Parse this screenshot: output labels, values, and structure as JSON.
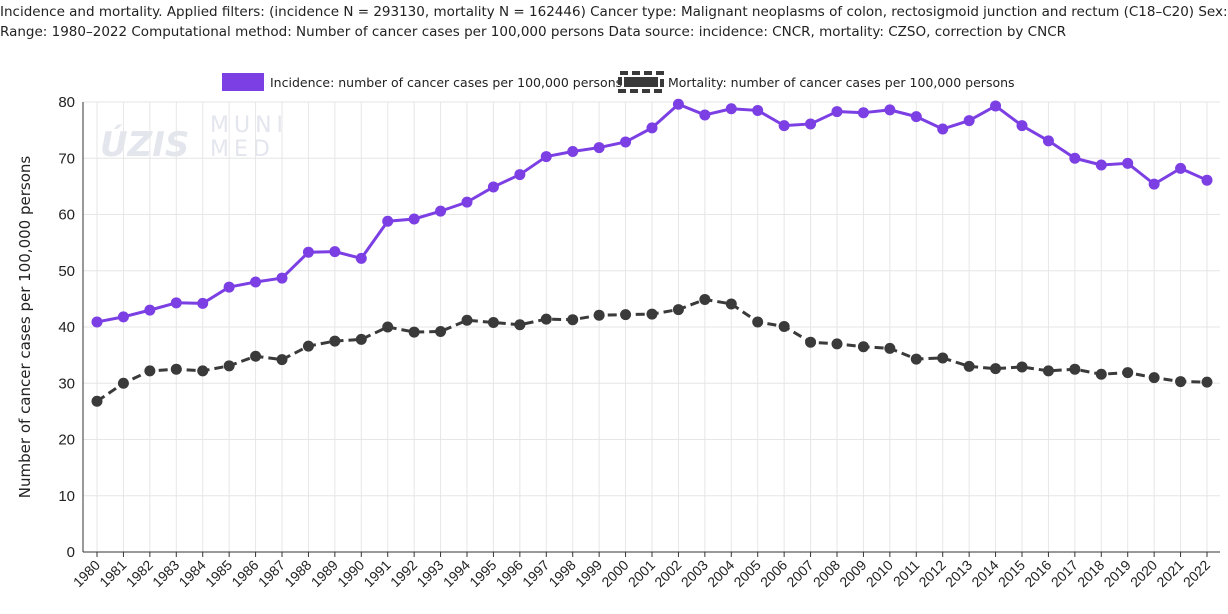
{
  "header": {
    "line1": "Incidence and mortality. Applied filters: (incidence N = 293130, mortality N = 162446) Cancer type: Malignant neoplasms of colon, rectosigmoid junction and rectum (C18–C20) Sex: bo",
    "line2": "Range: 1980–2022 Computational method: Number of cancer cases per 100,000 persons Data source: incidence: CNCR, mortality: CZSO, correction by CNCR"
  },
  "watermark": {
    "logo1": "ÚZIS",
    "logo2_top": "MUNI",
    "logo2_bottom": "MED"
  },
  "colors": {
    "incidence": "#7b3fe4",
    "mortality": "#3a3a3a",
    "grid": "#e6e6e6",
    "axis": "#333333"
  },
  "chart_data": {
    "type": "line",
    "title": "",
    "xlabel": "",
    "ylabel": "Number of cancer cases per 100,000 persons",
    "ylim": [
      0,
      80
    ],
    "yticks": [
      0,
      10,
      20,
      30,
      40,
      50,
      60,
      70,
      80
    ],
    "grid": true,
    "legend_position": "top-center",
    "categories": [
      "1980",
      "1981",
      "1982",
      "1983",
      "1984",
      "1985",
      "1986",
      "1987",
      "1988",
      "1989",
      "1990",
      "1991",
      "1992",
      "1993",
      "1994",
      "1995",
      "1996",
      "1997",
      "1998",
      "1999",
      "2000",
      "2001",
      "2002",
      "2003",
      "2004",
      "2005",
      "2006",
      "2007",
      "2008",
      "2009",
      "2010",
      "2011",
      "2012",
      "2013",
      "2014",
      "2015",
      "2016",
      "2017",
      "2018",
      "2019",
      "2020",
      "2021",
      "2022"
    ],
    "series": [
      {
        "name": "Incidence: number of cancer cases per 100,000 persons",
        "style": "solid",
        "values": [
          40.9,
          41.8,
          43.0,
          44.3,
          44.2,
          47.1,
          48.0,
          48.7,
          53.3,
          53.4,
          52.2,
          58.8,
          59.2,
          60.6,
          62.2,
          64.9,
          67.1,
          70.3,
          71.2,
          71.9,
          72.9,
          75.4,
          79.6,
          77.7,
          78.8,
          78.5,
          75.8,
          76.1,
          78.3,
          78.1,
          78.6,
          77.4,
          75.2,
          76.7,
          79.3,
          75.8,
          73.1,
          70.0,
          68.8,
          69.1,
          65.4,
          68.2,
          66.1
        ]
      },
      {
        "name": "Mortality: number of cancer cases per 100,000 persons",
        "style": "dashed",
        "values": [
          26.8,
          30.0,
          32.2,
          32.5,
          32.2,
          33.1,
          34.8,
          34.2,
          36.6,
          37.5,
          37.8,
          40.0,
          39.1,
          39.2,
          41.2,
          40.8,
          40.4,
          41.4,
          41.3,
          42.1,
          42.2,
          42.3,
          43.1,
          44.9,
          44.1,
          40.9,
          40.1,
          37.3,
          37.0,
          36.5,
          36.2,
          34.3,
          34.5,
          33.0,
          32.6,
          32.9,
          32.2,
          32.5,
          31.6,
          31.9,
          31.0,
          30.3,
          30.2
        ]
      }
    ]
  }
}
